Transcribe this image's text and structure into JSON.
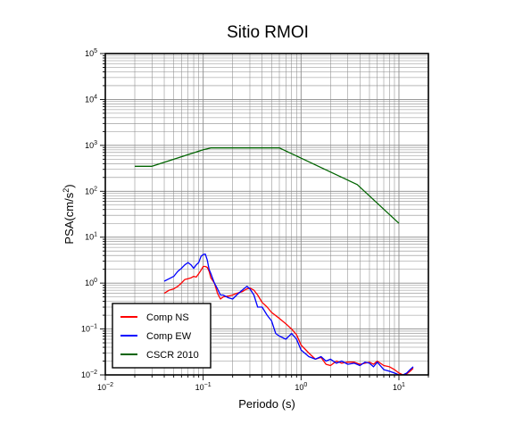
{
  "chart_data": {
    "type": "line",
    "title": "Sitio RMOI",
    "xlabel": "Periodo (s)",
    "ylabel_base": "PSA(cm/s",
    "ylabel_exp": "2",
    "ylabel_close": ")",
    "x_scale": "log",
    "y_scale": "log",
    "xlim": [
      0.01,
      20
    ],
    "ylim": [
      0.01,
      100000
    ],
    "x_ticks": [
      {
        "base": "10",
        "exp": "−2",
        "value": 0.01
      },
      {
        "base": "10",
        "exp": "−1",
        "value": 0.1
      },
      {
        "base": "10",
        "exp": "0",
        "value": 1
      },
      {
        "base": "10",
        "exp": "1",
        "value": 10
      }
    ],
    "y_ticks": [
      {
        "base": "10",
        "exp": "−2",
        "value": 0.01
      },
      {
        "base": "10",
        "exp": "−1",
        "value": 0.1
      },
      {
        "base": "10",
        "exp": "0",
        "value": 1
      },
      {
        "base": "10",
        "exp": "1",
        "value": 10
      },
      {
        "base": "10",
        "exp": "2",
        "value": 100
      },
      {
        "base": "10",
        "exp": "3",
        "value": 1000
      },
      {
        "base": "10",
        "exp": "4",
        "value": 10000
      },
      {
        "base": "10",
        "exp": "5",
        "value": 100000
      }
    ],
    "grid": true,
    "legend_position": "bottom-left",
    "series": [
      {
        "name": "Comp NS",
        "color": "#ff0000",
        "x": [
          0.04,
          0.045,
          0.05,
          0.055,
          0.06,
          0.065,
          0.07,
          0.075,
          0.08,
          0.085,
          0.09,
          0.095,
          0.1,
          0.105,
          0.11,
          0.115,
          0.12,
          0.13,
          0.14,
          0.15,
          0.16,
          0.18,
          0.2,
          0.22,
          0.25,
          0.28,
          0.3,
          0.33,
          0.36,
          0.4,
          0.45,
          0.5,
          0.6,
          0.7,
          0.8,
          0.9,
          1.0,
          1.2,
          1.4,
          1.6,
          1.8,
          2.0,
          2.3,
          2.6,
          3.0,
          3.5,
          4.0,
          4.5,
          5.0,
          5.5,
          6.0,
          7.0,
          8.0,
          9.0,
          10.0,
          11.0,
          12.0,
          13.0,
          14.0
        ],
        "y": [
          0.6,
          0.7,
          0.75,
          0.85,
          1.0,
          1.2,
          1.25,
          1.3,
          1.4,
          1.35,
          1.6,
          1.9,
          2.3,
          2.3,
          2.2,
          1.8,
          1.3,
          1.0,
          0.6,
          0.45,
          0.5,
          0.52,
          0.55,
          0.6,
          0.65,
          0.75,
          0.78,
          0.7,
          0.55,
          0.38,
          0.3,
          0.23,
          0.17,
          0.13,
          0.1,
          0.075,
          0.045,
          0.03,
          0.022,
          0.024,
          0.017,
          0.016,
          0.02,
          0.018,
          0.019,
          0.019,
          0.017,
          0.018,
          0.019,
          0.017,
          0.02,
          0.016,
          0.015,
          0.013,
          0.011,
          0.01,
          0.0105,
          0.012,
          0.014
        ]
      },
      {
        "name": "Comp EW",
        "color": "#0000ff",
        "x": [
          0.04,
          0.045,
          0.05,
          0.055,
          0.06,
          0.065,
          0.07,
          0.075,
          0.08,
          0.085,
          0.09,
          0.095,
          0.1,
          0.105,
          0.11,
          0.115,
          0.12,
          0.13,
          0.14,
          0.15,
          0.16,
          0.18,
          0.2,
          0.22,
          0.25,
          0.28,
          0.3,
          0.33,
          0.36,
          0.4,
          0.45,
          0.5,
          0.55,
          0.6,
          0.7,
          0.8,
          0.9,
          1.0,
          1.2,
          1.4,
          1.6,
          1.8,
          2.0,
          2.3,
          2.6,
          3.0,
          3.5,
          4.0,
          4.5,
          5.0,
          5.5,
          6.0,
          7.0,
          8.0,
          9.0,
          10.0,
          11.0,
          12.0,
          13.0,
          14.0
        ],
        "y": [
          1.1,
          1.25,
          1.4,
          1.8,
          2.1,
          2.5,
          2.8,
          2.5,
          2.1,
          2.5,
          2.8,
          3.8,
          4.2,
          4.3,
          3.2,
          2.0,
          1.6,
          1.0,
          0.75,
          0.55,
          0.55,
          0.48,
          0.45,
          0.55,
          0.7,
          0.85,
          0.75,
          0.55,
          0.3,
          0.3,
          0.2,
          0.15,
          0.08,
          0.07,
          0.06,
          0.08,
          0.06,
          0.035,
          0.025,
          0.022,
          0.025,
          0.02,
          0.022,
          0.018,
          0.02,
          0.017,
          0.018,
          0.016,
          0.019,
          0.018,
          0.015,
          0.019,
          0.013,
          0.012,
          0.011,
          0.01,
          0.01,
          0.011,
          0.013,
          0.015
        ]
      },
      {
        "name": "CSCR 2010",
        "color": "#006400",
        "x": [
          0.02,
          0.03,
          0.1,
          0.12,
          0.6,
          3.75,
          10
        ],
        "y": [
          350,
          350,
          800,
          880,
          880,
          140,
          20
        ]
      }
    ]
  }
}
